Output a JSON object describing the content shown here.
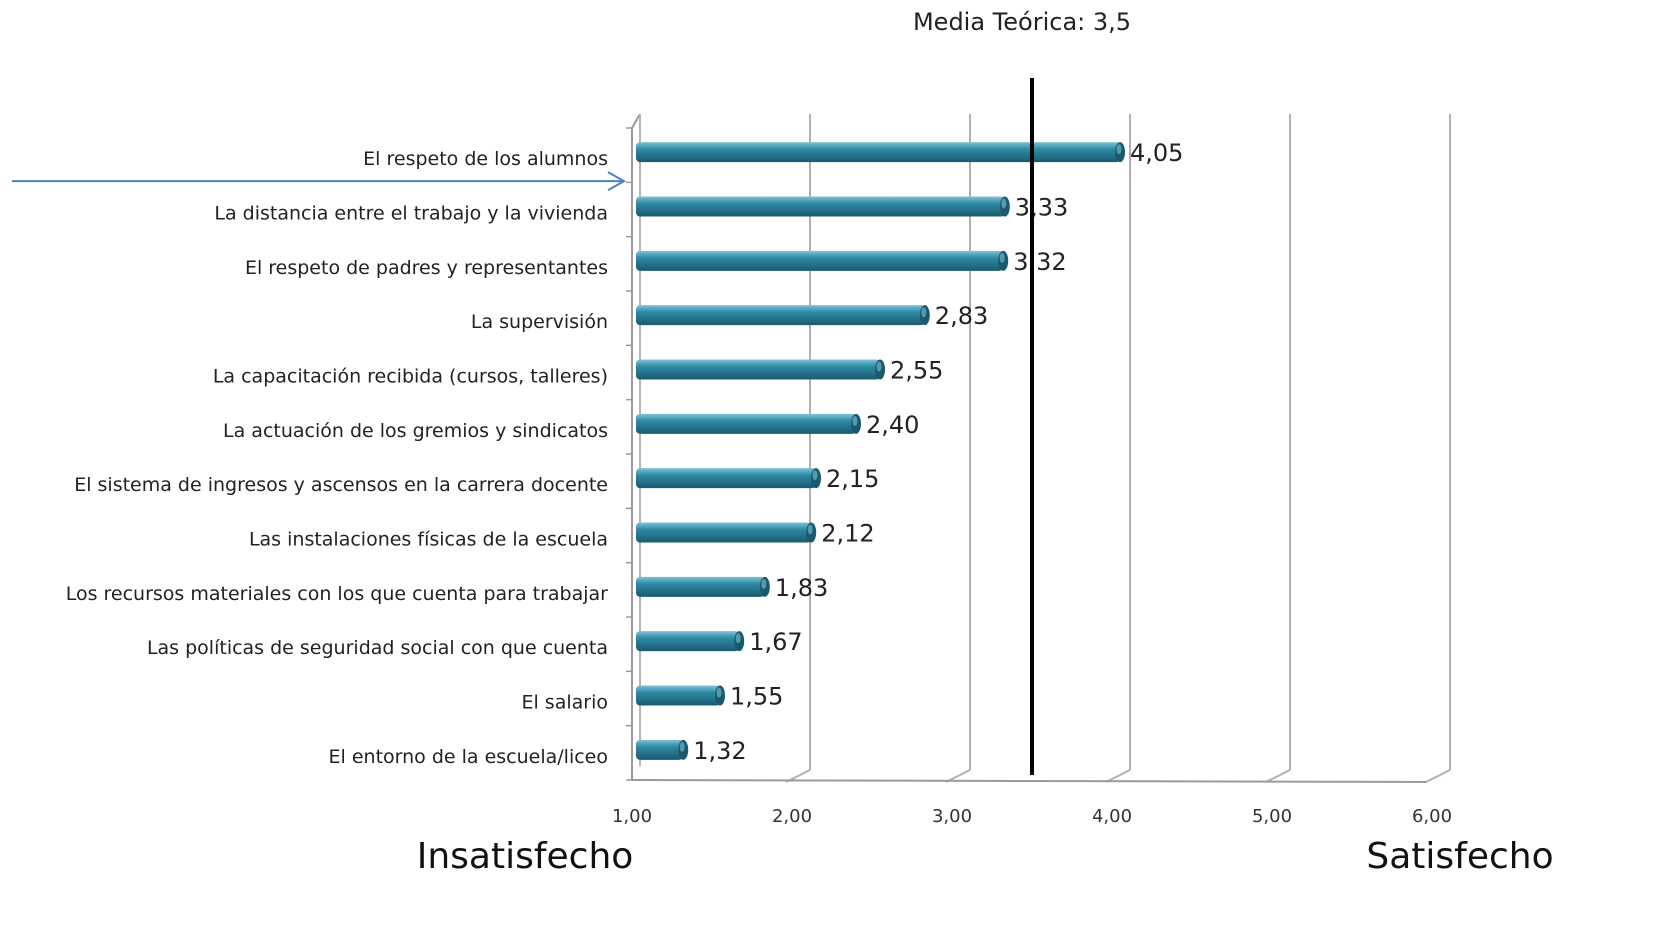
{
  "chart_data": {
    "type": "bar",
    "orientation": "horizontal",
    "categories": [
      "El respeto de los alumnos",
      "La distancia entre el trabajo y la vivienda",
      "El respeto de padres y representantes",
      "La supervisión",
      "La capacitación recibida (cursos, talleres)",
      "La actuación de los gremios y sindicatos",
      "El sistema de ingresos y ascensos en la carrera docente",
      "Las instalaciones físicas de la escuela",
      "Los recursos materiales con los que cuenta para trabajar",
      "Las políticas de seguridad social con que cuenta",
      "El salario",
      "El entorno de la escuela/liceo"
    ],
    "values": [
      4.05,
      3.33,
      3.32,
      2.83,
      2.55,
      2.4,
      2.15,
      2.12,
      1.83,
      1.67,
      1.55,
      1.32
    ],
    "value_labels": [
      "4,05",
      "3,33",
      "3,32",
      "2,83",
      "2,55",
      "2,40",
      "2,15",
      "2,12",
      "1,83",
      "1,67",
      "1,55",
      "1,32"
    ],
    "xlim": [
      1,
      6
    ],
    "x_ticks": [
      1,
      2,
      3,
      4,
      5,
      6
    ],
    "x_tick_labels": [
      "1,00",
      "2,00",
      "3,00",
      "4,00",
      "5,00",
      "6,00"
    ],
    "reference_line": {
      "value": 3.5,
      "label": "Media Teórica: 3,5"
    },
    "scale_labels": {
      "low": "Insatisfecho",
      "high": "Satisfecho"
    },
    "highlighted_category": "El respeto de los alumnos",
    "grid": true,
    "style": "3d",
    "bar_color": "#2e8aa6",
    "bar_highlight_color": "#7fc3d6",
    "bar_dark_color": "#1b5a6e",
    "arrow_color": "#4f81bd",
    "reference_line_color": "#000000"
  }
}
